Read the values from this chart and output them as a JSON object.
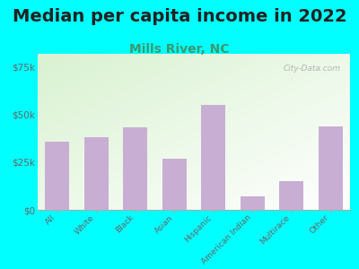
{
  "title": "Median per capita income in 2022",
  "subtitle": "Mills River, NC",
  "categories": [
    "All",
    "White",
    "Black",
    "Asian",
    "Hispanic",
    "American Indian",
    "Multirace",
    "Other"
  ],
  "values": [
    36000,
    38000,
    43500,
    27000,
    55000,
    7000,
    15000,
    44000
  ],
  "bar_color": "#c9aed4",
  "background_outer": "#00ffff",
  "yticks": [
    0,
    25000,
    50000,
    75000
  ],
  "ytick_labels": [
    "$0",
    "$25k",
    "$50k",
    "$75k"
  ],
  "ylim": [
    0,
    82000
  ],
  "title_fontsize": 14,
  "subtitle_fontsize": 10,
  "subtitle_color": "#3a9a6e",
  "tick_label_color": "#666666",
  "title_color": "#222222",
  "watermark": "City-Data.com"
}
